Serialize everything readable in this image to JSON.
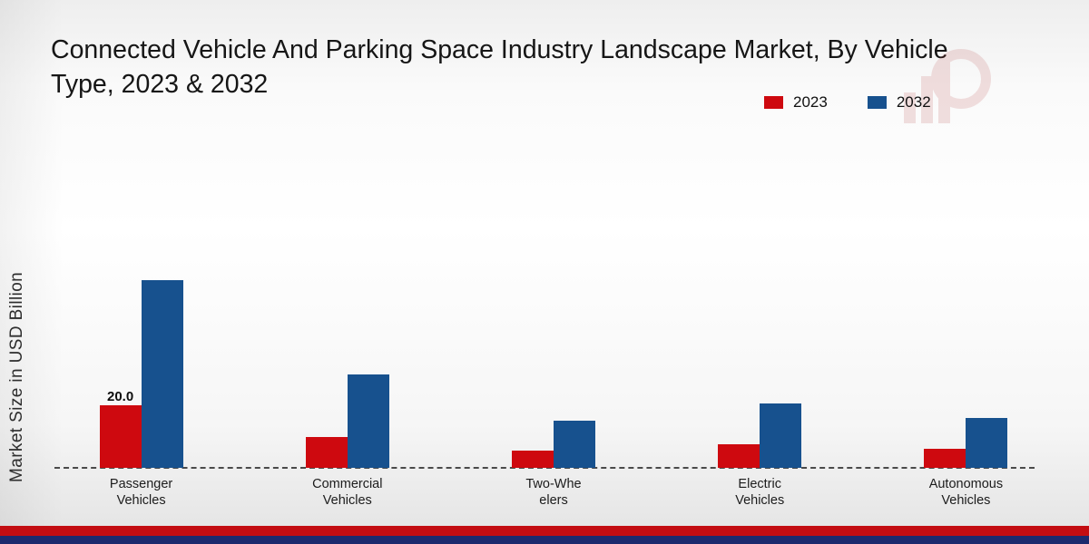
{
  "title": "Connected Vehicle And Parking Space Industry Landscape Market, By Vehicle Type, 2023 & 2032",
  "title_lines": [
    "Connected Vehicle And Parking Space Industry Landscape Market, By Vehicle",
    "Type, 2023 & 2032"
  ],
  "ylabel": "Market Size in USD Billion",
  "legend": [
    {
      "label": "2023",
      "color": "#ce090f"
    },
    {
      "label": "2032",
      "color": "#17518e"
    }
  ],
  "watermark_icon": "bar-chart-logo",
  "chart_data": {
    "type": "bar",
    "title": "Connected Vehicle And Parking Space Industry Landscape Market, By Vehicle Type, 2023 & 2032",
    "ylabel": "Market Size in USD Billion",
    "xlabel": "",
    "categories": [
      "Passenger Vehicles",
      "Commercial Vehicles",
      "Two-Wheelers",
      "Electric Vehicles",
      "Autonomous Vehicles"
    ],
    "category_label_lines": [
      [
        "Passenger",
        "Vehicles"
      ],
      [
        "Commercial",
        "Vehicles"
      ],
      [
        "Two-Whe",
        "elers"
      ],
      [
        "Electric",
        "Vehicles"
      ],
      [
        "Autonomous",
        "Vehicles"
      ]
    ],
    "series": [
      {
        "name": "2023",
        "color": "#ce090f",
        "values": [
          20.0,
          10.0,
          5.5,
          7.5,
          6.0
        ]
      },
      {
        "name": "2032",
        "color": "#17518e",
        "values": [
          60.0,
          30.0,
          15.0,
          20.5,
          16.0
        ]
      }
    ],
    "bar_labels": [
      [
        "20.0",
        "",
        "",
        "",
        ""
      ],
      [
        "",
        "",
        "",
        "",
        ""
      ]
    ],
    "ylim": [
      0,
      65
    ],
    "grid": false,
    "legend_position": "top-right",
    "baseline_style": "dashed"
  }
}
